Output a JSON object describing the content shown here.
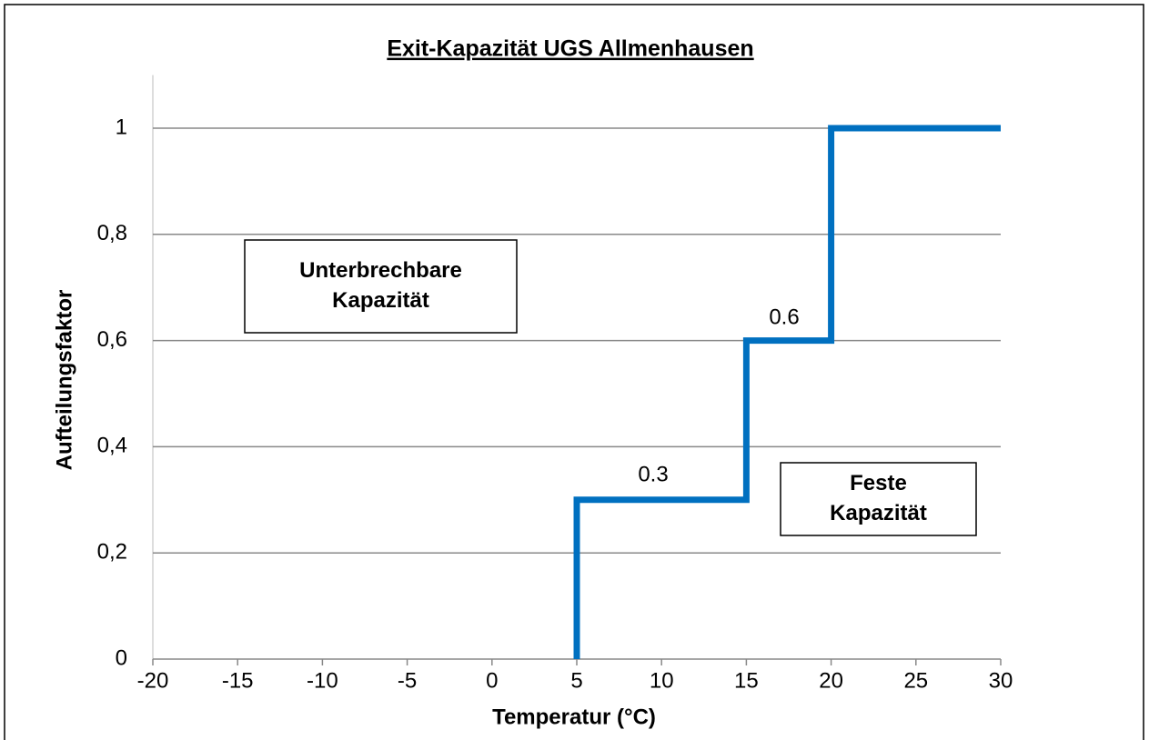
{
  "chart_data": {
    "type": "line",
    "title": "Exit-Kapazität UGS Allmenhausen",
    "xlabel": "Temperatur (°C)",
    "ylabel": "Aufteilungsfaktor",
    "series": [
      {
        "color": "#0070c0",
        "x": [
          5,
          5,
          15,
          15,
          20,
          20,
          30
        ],
        "values": [
          0,
          0.3,
          0.3,
          0.6,
          0.6,
          1,
          1
        ]
      }
    ],
    "xlim": [
      -20,
      30
    ],
    "ylim": [
      0,
      1.1
    ],
    "xticks": [
      -20,
      -15,
      -10,
      -5,
      0,
      5,
      10,
      15,
      20,
      25,
      30
    ],
    "yticks": [
      0,
      {
        "value": 0.2,
        "label": "0,2"
      },
      {
        "value": 0.4,
        "label": "0,4"
      },
      {
        "value": 0.6,
        "label": "0,6"
      },
      {
        "value": 0.8,
        "label": "0,8"
      },
      1
    ],
    "grid": true,
    "annotations": [
      {
        "lines": [
          "Unterbrechbare",
          "Kapazität"
        ]
      },
      {
        "lines": [
          "Feste",
          "Kapazität"
        ]
      },
      {
        "text": "0.3"
      },
      {
        "text": "0.6"
      }
    ]
  }
}
